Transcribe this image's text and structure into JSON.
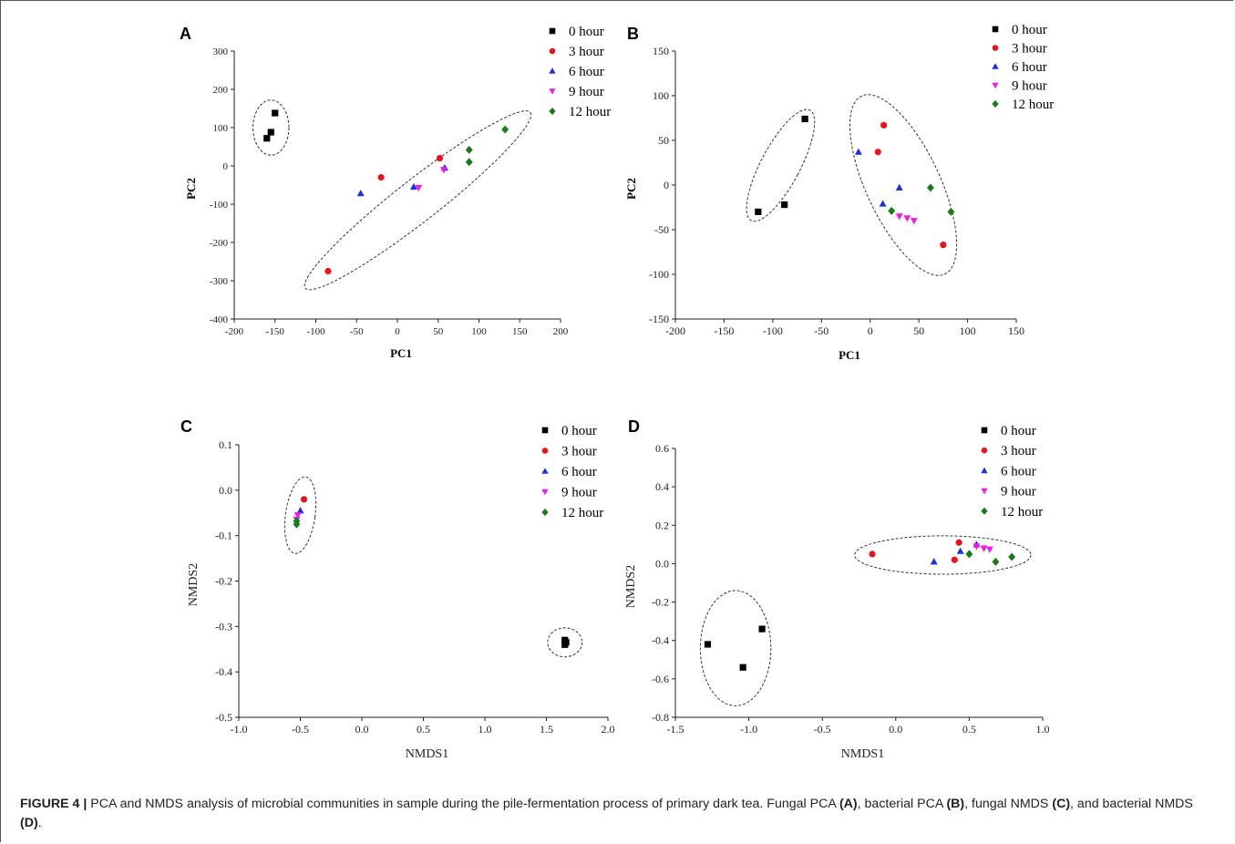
{
  "caption": {
    "label": "FIGURE 4 |",
    "text1": " PCA and NMDS analysis of microbial communities in sample during the pile-fermentation process of primary dark tea. Fungal PCA ",
    "refA": "(A)",
    "text2": ", bacterial PCA ",
    "refB": "(B)",
    "text3": ", fungal NMDS ",
    "refC": "(C)",
    "text4": ", and bacterial NMDS ",
    "refD": "(D)",
    "text5": "."
  },
  "legend": [
    {
      "label": "0 hour",
      "color": "#000000",
      "marker": "square"
    },
    {
      "label": "3 hour",
      "color": "#e8141c",
      "marker": "circle"
    },
    {
      "label": "6 hour",
      "color": "#1a2ee0",
      "marker": "triangle-up"
    },
    {
      "label": "9 hour",
      "color": "#e81ee0",
      "marker": "triangle-down"
    },
    {
      "label": "12 hour",
      "color": "#1a7a1a",
      "marker": "diamond"
    }
  ],
  "chart_data": [
    {
      "panel": "A",
      "type": "scatter",
      "xlabel": "PC1",
      "ylabel": "PC2",
      "xlim": [
        -200,
        200
      ],
      "ylim": [
        -400,
        300
      ],
      "xticks": [
        -200,
        -150,
        -100,
        -50,
        0,
        50,
        100,
        150,
        200
      ],
      "yticks": [
        -400,
        -300,
        -200,
        -100,
        0,
        100,
        200,
        300
      ],
      "series": [
        {
          "name": "0 hour",
          "x": [
            -160,
            -155,
            -150
          ],
          "y": [
            72,
            88,
            138
          ]
        },
        {
          "name": "3 hour",
          "x": [
            -85,
            -20,
            52
          ],
          "y": [
            -275,
            -30,
            20
          ]
        },
        {
          "name": "6 hour",
          "x": [
            -45,
            20,
            58
          ],
          "y": [
            -72,
            -55,
            -5
          ]
        },
        {
          "name": "9 hour",
          "x": [
            26,
            57
          ],
          "y": [
            -57,
            -10
          ]
        },
        {
          "name": "12 hour",
          "x": [
            88,
            88,
            132
          ],
          "y": [
            42,
            10,
            95
          ]
        }
      ],
      "ellipses": [
        {
          "cx": -155,
          "cy": 100,
          "rx": 22,
          "ry": 72,
          "angle": 0
        },
        {
          "cx": 25,
          "cy": -90,
          "rx": 175,
          "ry": 55,
          "angle": -38
        }
      ]
    },
    {
      "panel": "B",
      "type": "scatter",
      "xlabel": "PC1",
      "ylabel": "PC2",
      "xlim": [
        -200,
        150
      ],
      "ylim": [
        -150,
        150
      ],
      "xticks": [
        -200,
        -150,
        -100,
        -50,
        0,
        50,
        100,
        150
      ],
      "yticks": [
        -150,
        -100,
        -50,
        0,
        50,
        100,
        150
      ],
      "series": [
        {
          "name": "0 hour",
          "x": [
            -115,
            -88,
            -67
          ],
          "y": [
            -30,
            -22,
            74
          ]
        },
        {
          "name": "3 hour",
          "x": [
            8,
            14,
            75
          ],
          "y": [
            37,
            67,
            -67
          ]
        },
        {
          "name": "6 hour",
          "x": [
            -12,
            13,
            30
          ],
          "y": [
            37,
            -21,
            -3
          ]
        },
        {
          "name": "9 hour",
          "x": [
            30,
            38,
            45
          ],
          "y": [
            -35,
            -37,
            -40
          ]
        },
        {
          "name": "12 hour",
          "x": [
            22,
            62,
            83
          ],
          "y": [
            -29,
            -3,
            -30
          ]
        }
      ]
    },
    {
      "panel": "C",
      "type": "scatter",
      "xlabel": "NMDS1",
      "ylabel": "NMDS2",
      "xlim": [
        -1.0,
        2.0
      ],
      "ylim": [
        -0.5,
        0.1
      ],
      "xticks": [
        -1.0,
        -0.5,
        0.0,
        0.5,
        1.0,
        1.5,
        2.0
      ],
      "yticks": [
        -0.5,
        -0.4,
        -0.3,
        -0.2,
        -0.1,
        0.0,
        0.1
      ],
      "series": [
        {
          "name": "0 hour",
          "x": [
            1.65,
            1.66,
            1.65
          ],
          "y": [
            -0.33,
            -0.335,
            -0.34
          ]
        },
        {
          "name": "3 hour",
          "x": [
            -0.47
          ],
          "y": [
            -0.02
          ]
        },
        {
          "name": "6 hour",
          "x": [
            -0.5
          ],
          "y": [
            -0.045
          ]
        },
        {
          "name": "9 hour",
          "x": [
            -0.52,
            -0.53
          ],
          "y": [
            -0.055,
            -0.065
          ]
        },
        {
          "name": "12 hour",
          "x": [
            -0.53,
            -0.53
          ],
          "y": [
            -0.068,
            -0.075
          ]
        }
      ]
    },
    {
      "panel": "D",
      "type": "scatter",
      "xlabel": "NMDS1",
      "ylabel": "NMDS2",
      "xlim": [
        -1.5,
        1.0
      ],
      "ylim": [
        -0.8,
        0.6
      ],
      "xticks": [
        -1.5,
        -1.0,
        -0.5,
        0.0,
        0.5,
        1.0
      ],
      "yticks": [
        -0.8,
        -0.6,
        -0.4,
        -0.2,
        0.0,
        0.2,
        0.4,
        0.6
      ],
      "series": [
        {
          "name": "0 hour",
          "x": [
            -1.28,
            -1.04,
            -0.91
          ],
          "y": [
            -0.42,
            -0.54,
            -0.34
          ]
        },
        {
          "name": "3 hour",
          "x": [
            -0.16,
            0.4,
            0.43
          ],
          "y": [
            0.05,
            0.02,
            0.11
          ]
        },
        {
          "name": "6 hour",
          "x": [
            0.26,
            0.44,
            0.55
          ],
          "y": [
            0.01,
            0.065,
            0.1
          ]
        },
        {
          "name": "9 hour",
          "x": [
            0.55,
            0.6,
            0.64
          ],
          "y": [
            0.09,
            0.08,
            0.075
          ]
        },
        {
          "name": "12 hour",
          "x": [
            0.5,
            0.68,
            0.79
          ],
          "y": [
            0.05,
            0.01,
            0.035
          ]
        }
      ]
    }
  ]
}
